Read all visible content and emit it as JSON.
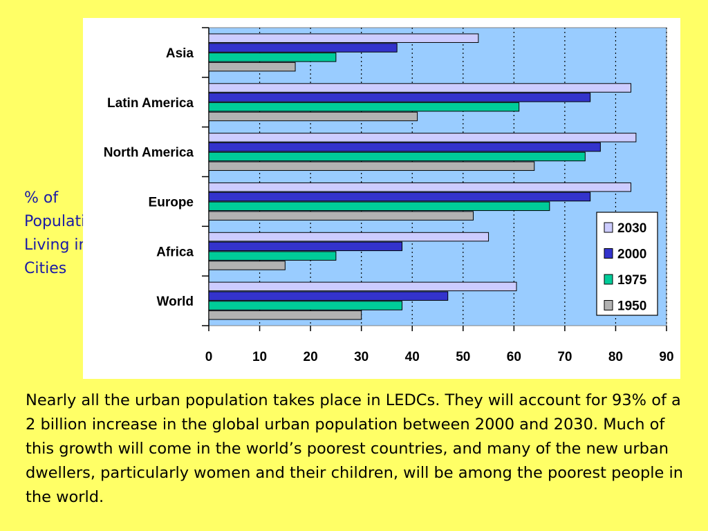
{
  "slide": {
    "side_label": "% of Population Living in Cities",
    "caption": "Nearly all the urban population takes place in LEDCs. They will account for 93% of a 2 billion increase in the global urban population between 2000 and 2030. Much of this growth will come in the world’s poorest countries, and many of the new urban dwellers, particularly women and their children, will be among the poorest people in the world."
  },
  "colors": {
    "page_background": "#ffff66",
    "plot_background": "#99ccff",
    "text_blue": "#1a1aa6"
  },
  "chart_data": {
    "type": "bar",
    "orientation": "horizontal",
    "title": "",
    "xlabel": "",
    "ylabel": "",
    "categories": [
      "Asia",
      "Latin America",
      "North America",
      "Europe",
      "Africa",
      "World"
    ],
    "series": [
      {
        "name": "2030",
        "color": "#ccccff",
        "values": [
          53,
          83,
          84,
          83,
          55,
          60.5
        ]
      },
      {
        "name": "2000",
        "color": "#3333cc",
        "values": [
          37,
          75,
          77,
          75,
          38,
          47
        ]
      },
      {
        "name": "1975",
        "color": "#00cc99",
        "values": [
          25,
          61,
          74,
          67,
          25,
          38
        ]
      },
      {
        "name": "1950",
        "color": "#b2b2b2",
        "values": [
          17,
          41,
          64,
          52,
          15,
          30
        ]
      }
    ],
    "xlim": [
      0,
      90
    ],
    "x_ticks": [
      "0",
      "10",
      "20",
      "30",
      "40",
      "50",
      "60",
      "70",
      "80",
      "90"
    ],
    "grid": "vertical dotted",
    "legend_position": "bottom-right"
  }
}
